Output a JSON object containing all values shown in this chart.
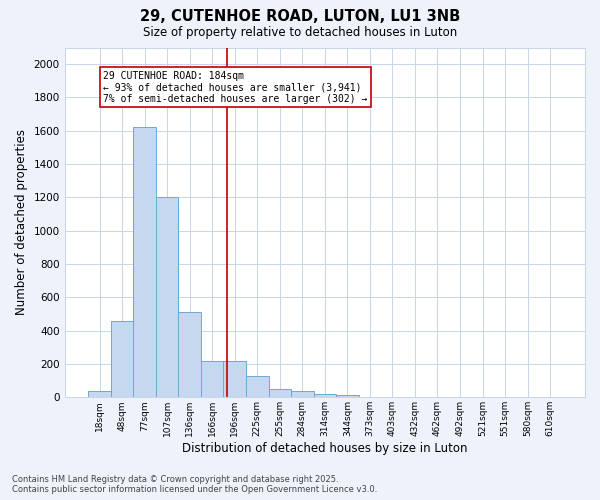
{
  "title1": "29, CUTENHOE ROAD, LUTON, LU1 3NB",
  "title2": "Size of property relative to detached houses in Luton",
  "xlabel": "Distribution of detached houses by size in Luton",
  "ylabel": "Number of detached properties",
  "categories": [
    "18sqm",
    "48sqm",
    "77sqm",
    "107sqm",
    "136sqm",
    "166sqm",
    "196sqm",
    "225sqm",
    "255sqm",
    "284sqm",
    "314sqm",
    "344sqm",
    "373sqm",
    "403sqm",
    "432sqm",
    "462sqm",
    "492sqm",
    "521sqm",
    "551sqm",
    "580sqm",
    "610sqm"
  ],
  "values": [
    35,
    460,
    1620,
    1205,
    510,
    215,
    215,
    125,
    48,
    35,
    22,
    12,
    0,
    0,
    0,
    0,
    0,
    0,
    0,
    0,
    0
  ],
  "bar_color": "#c5d8f0",
  "bar_edge_color": "#6aaad4",
  "vline_x": 5.65,
  "vline_color": "#c00000",
  "annotation_text": "29 CUTENHOE ROAD: 184sqm\n← 93% of detached houses are smaller (3,941)\n7% of semi-detached houses are larger (302) →",
  "annotation_box_color": "#c00000",
  "ylim": [
    0,
    2100
  ],
  "yticks": [
    0,
    200,
    400,
    600,
    800,
    1000,
    1200,
    1400,
    1600,
    1800,
    2000
  ],
  "footnote1": "Contains HM Land Registry data © Crown copyright and database right 2025.",
  "footnote2": "Contains public sector information licensed under the Open Government Licence v3.0.",
  "bg_color": "#eef2fb",
  "plot_bg_color": "#ffffff",
  "grid_color": "#c8d4e8"
}
